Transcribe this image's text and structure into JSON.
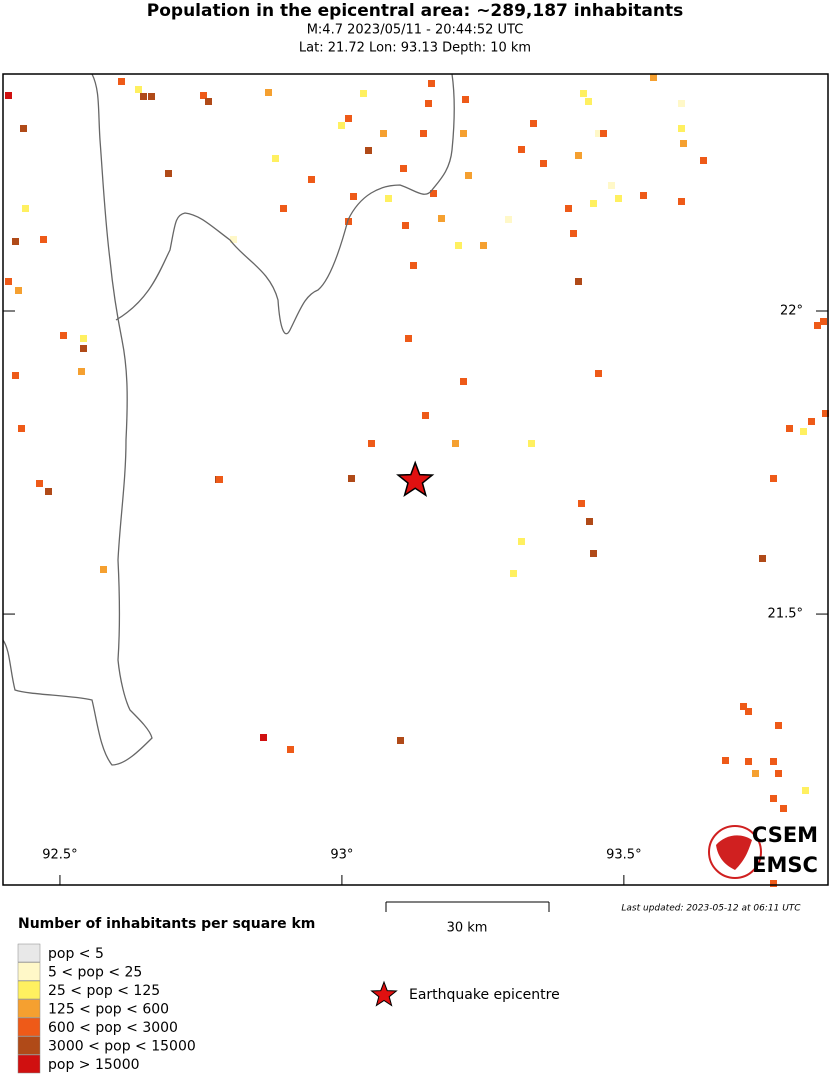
{
  "header": {
    "title": "Population in the epicentral area: ~289,187 inhabitants",
    "line1": "M:4.7 2023/05/11 - 20:44:52 UTC",
    "line2": "Lat: 21.72 Lon: 93.13 Depth: 10 km"
  },
  "map": {
    "xlim": [
      92.399,
      93.862
    ],
    "ylim": [
      21.053,
      22.391
    ],
    "xticks": [
      {
        "value": 92.5,
        "label": "92.5°"
      },
      {
        "value": 93,
        "label": "93°"
      },
      {
        "value": 93.5,
        "label": "93.5°"
      }
    ],
    "yticks": [
      {
        "value": 22,
        "label": "22°"
      },
      {
        "value": 21.5,
        "label": "21.5°"
      }
    ],
    "epicenter": {
      "lon": 93.13,
      "lat": 21.72
    },
    "scale_label": "30 km",
    "updated": "Last updated: 2023-05-12 at 06:11 UTC",
    "logo": [
      "CSEM",
      "EMSC"
    ]
  },
  "legend": {
    "title": "Number of inhabitants per square km",
    "items": [
      {
        "label": "pop < 5",
        "color": "#e8e8e8"
      },
      {
        "label": "5 < pop < 25",
        "color": "#fff8c8"
      },
      {
        "label": "25 < pop < 125",
        "color": "#fff060"
      },
      {
        "label": "125 < pop < 600",
        "color": "#f5a030"
      },
      {
        "label": "600 < pop < 3000",
        "color": "#ee5a18"
      },
      {
        "label": "3000 < pop < 15000",
        "color": "#b04a18"
      },
      {
        "label": "pop > 15000",
        "color": "#d01010"
      }
    ],
    "epicentre": "Earthquake epicentre"
  }
}
